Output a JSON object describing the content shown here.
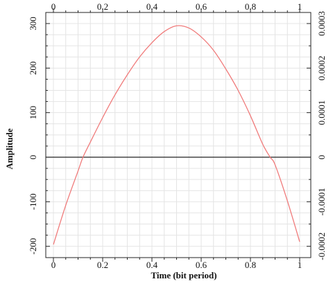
{
  "chart_data": {
    "type": "line",
    "xlabel": "Time (bit period)",
    "ylabel": "Amplitude",
    "xlim": [
      0,
      1
    ],
    "ylim": [
      -210,
      300
    ],
    "y2lim": [
      -0.0002,
      0.0003
    ],
    "x_ticks": [
      "0",
      "0.2",
      "0.4",
      "0.6",
      "0.8",
      "1"
    ],
    "x_tick_values": [
      0,
      0.2,
      0.4,
      0.6,
      0.8,
      1
    ],
    "y_ticks": [
      "300",
      "200",
      "100",
      "0",
      "-100",
      "-200"
    ],
    "y_tick_values": [
      300,
      200,
      100,
      0,
      -100,
      -200
    ],
    "y2_ticks": [
      "0.0003",
      "0.0002",
      "0.0001",
      "0",
      "-0.0001",
      "-0.0002"
    ],
    "y2_tick_values": [
      0.0003,
      0.0002,
      0.0001,
      0,
      -0.0001,
      -0.0002
    ],
    "grid": true,
    "series": [
      {
        "color": "#f07a7a",
        "x": [
          0,
          0.05,
          0.1,
          0.12,
          0.15,
          0.2,
          0.25,
          0.3,
          0.35,
          0.4,
          0.45,
          0.5,
          0.55,
          0.6,
          0.65,
          0.7,
          0.75,
          0.8,
          0.85,
          0.88,
          0.9,
          0.95,
          1
        ],
        "y": [
          -196,
          -108,
          -31,
          0,
          34,
          89,
          140,
          185,
          225,
          257,
          282,
          295,
          290,
          270,
          240,
          198,
          150,
          93,
          29,
          0,
          -17,
          -98,
          -190
        ]
      }
    ]
  }
}
